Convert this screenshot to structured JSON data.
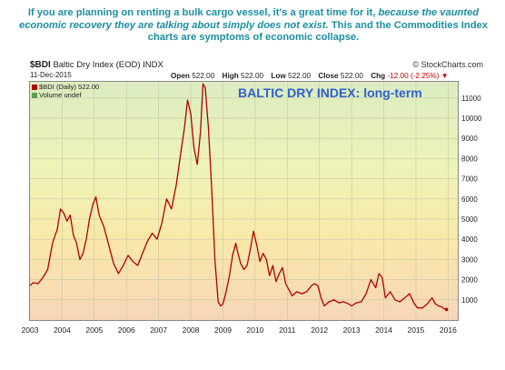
{
  "caption": {
    "part1": "If you are planning on renting a bulk cargo vessel, it's a great time for it,",
    "part2": "because the vaunted economic recovery they are talking about simply does not exist.",
    "part3": "This and the Commodities Index charts are symptoms of economic collapse."
  },
  "header": {
    "symbol": "$BDI",
    "name": "Baltic Dry Index (EOD) INDX",
    "date": "11-Dec-2015",
    "open_label": "Open",
    "open": "522.00",
    "high_label": "High",
    "high": "522.00",
    "low_label": "Low",
    "low": "522.00",
    "close_label": "Close",
    "close": "522.00",
    "chg_label": "Chg",
    "chg": "-12.00 (-2.25%)",
    "chg_arrow": "▼",
    "brand": "© StockCharts.com"
  },
  "legend": {
    "series": "$BDI (Daily) 522.00",
    "volume": "Volume undef"
  },
  "chart_title": "BALTIC DRY INDEX: long-term",
  "colors": {
    "line": "#b00000",
    "caption": "#1b8fa0",
    "title": "#2f5fd0"
  },
  "chart_data": {
    "type": "line",
    "title": "BALTIC DRY INDEX: long-term",
    "x_ticks": [
      "2003",
      "2004",
      "2005",
      "2006",
      "2007",
      "2008",
      "2009",
      "2010",
      "2011",
      "2012",
      "2013",
      "2014",
      "2015",
      "2016"
    ],
    "y_ticks": [
      1000,
      2000,
      3000,
      4000,
      5000,
      6000,
      7000,
      8000,
      9000,
      10000,
      11000
    ],
    "ylim": [
      0,
      11800
    ],
    "xlim": [
      2003.0,
      2016.3
    ],
    "grid": true,
    "series": [
      {
        "name": "$BDI (Daily)",
        "x": [
          2003.0,
          2003.1,
          2003.25,
          2003.4,
          2003.55,
          2003.7,
          2003.85,
          2003.95,
          2004.05,
          2004.15,
          2004.25,
          2004.35,
          2004.45,
          2004.55,
          2004.65,
          2004.75,
          2004.85,
          2004.95,
          2005.05,
          2005.15,
          2005.3,
          2005.45,
          2005.6,
          2005.75,
          2005.9,
          2006.05,
          2006.2,
          2006.35,
          2006.5,
          2006.65,
          2006.8,
          2006.95,
          2007.1,
          2007.25,
          2007.4,
          2007.55,
          2007.7,
          2007.8,
          2007.9,
          2008.0,
          2008.1,
          2008.2,
          2008.3,
          2008.38,
          2008.45,
          2008.55,
          2008.65,
          2008.75,
          2008.85,
          2008.93,
          2009.0,
          2009.1,
          2009.2,
          2009.3,
          2009.4,
          2009.45,
          2009.55,
          2009.65,
          2009.75,
          2009.85,
          2009.95,
          2010.05,
          2010.15,
          2010.25,
          2010.35,
          2010.45,
          2010.55,
          2010.65,
          2010.75,
          2010.85,
          2010.95,
          2011.05,
          2011.15,
          2011.3,
          2011.45,
          2011.6,
          2011.75,
          2011.85,
          2011.95,
          2012.05,
          2012.15,
          2012.3,
          2012.45,
          2012.6,
          2012.75,
          2012.9,
          2013.0,
          2013.15,
          2013.3,
          2013.45,
          2013.6,
          2013.75,
          2013.85,
          2013.95,
          2014.05,
          2014.2,
          2014.35,
          2014.5,
          2014.65,
          2014.8,
          2014.95,
          2015.05,
          2015.2,
          2015.35,
          2015.5,
          2015.6,
          2015.7,
          2015.8,
          2015.9,
          2015.95
        ],
        "values": [
          1700,
          1850,
          1800,
          2100,
          2500,
          3800,
          4500,
          5500,
          5300,
          4900,
          5200,
          4200,
          3800,
          3000,
          3300,
          4000,
          5000,
          5700,
          6100,
          5200,
          4600,
          3700,
          2800,
          2300,
          2700,
          3200,
          2900,
          2700,
          3300,
          3900,
          4300,
          4000,
          4800,
          6000,
          5500,
          6700,
          8400,
          9500,
          10900,
          10200,
          8500,
          7700,
          9300,
          11700,
          11500,
          9500,
          6500,
          3000,
          900,
          700,
          800,
          1400,
          2200,
          3200,
          3800,
          3400,
          2800,
          2500,
          2700,
          3500,
          4400,
          3700,
          2900,
          3300,
          3000,
          2200,
          2700,
          1900,
          2300,
          2600,
          1800,
          1500,
          1200,
          1400,
          1300,
          1400,
          1700,
          1800,
          1700,
          1100,
          700,
          900,
          1000,
          850,
          900,
          800,
          700,
          850,
          900,
          1300,
          2000,
          1600,
          2300,
          2100,
          1100,
          1400,
          1000,
          900,
          1100,
          1300,
          800,
          600,
          600,
          800,
          1100,
          800,
          700,
          650,
          534,
          522
        ]
      }
    ]
  }
}
